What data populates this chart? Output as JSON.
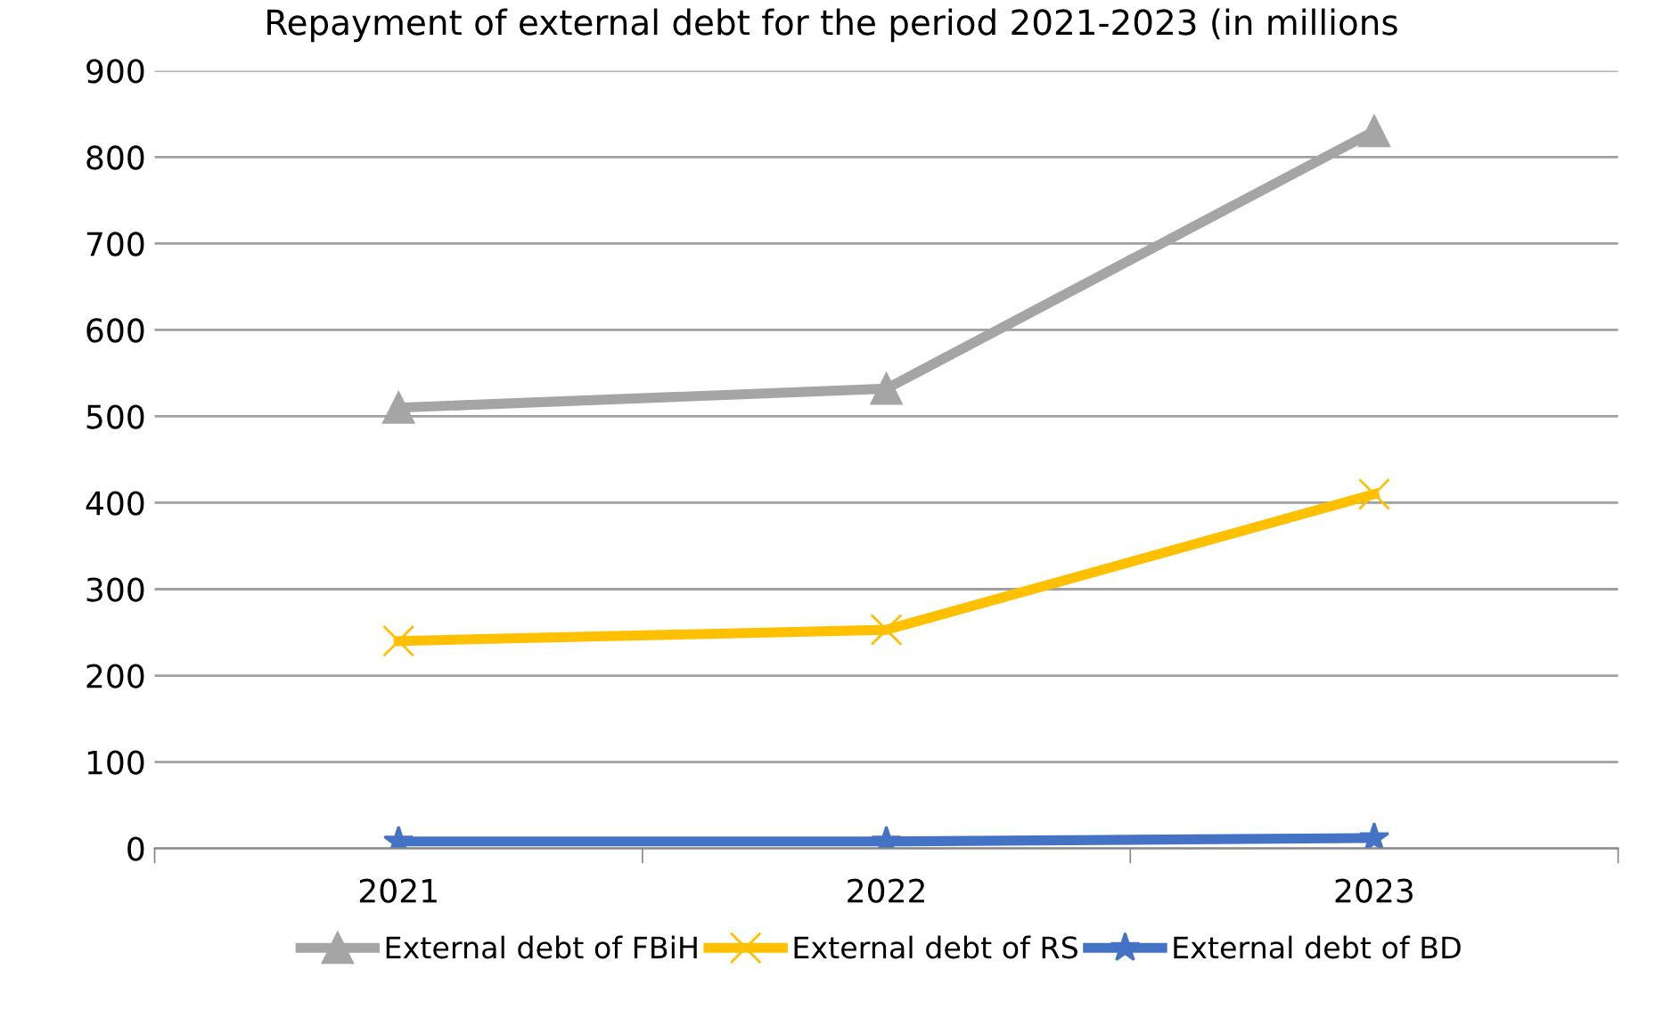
{
  "chart_data": {
    "type": "line",
    "title": "Repayment of external debt for the period 2021-2023 (in millions",
    "categories": [
      "2021",
      "2022",
      "2023"
    ],
    "series": [
      {
        "name": "External debt of FBiH",
        "color": "#a5a5a5",
        "marker": "triangle",
        "values": [
          510,
          532,
          830
        ]
      },
      {
        "name": "External debt of RS",
        "color": "#ffc000",
        "marker": "cross",
        "values": [
          240,
          253,
          410
        ]
      },
      {
        "name": "External debt of BD",
        "color": "#4472c4",
        "marker": "star",
        "values": [
          8,
          8,
          12
        ]
      }
    ],
    "ylim": [
      0,
      900
    ],
    "yticks": [
      0,
      100,
      200,
      300,
      400,
      500,
      600,
      700,
      800,
      900
    ],
    "grid": "y",
    "legend": "bottom",
    "line_style": "solid"
  }
}
